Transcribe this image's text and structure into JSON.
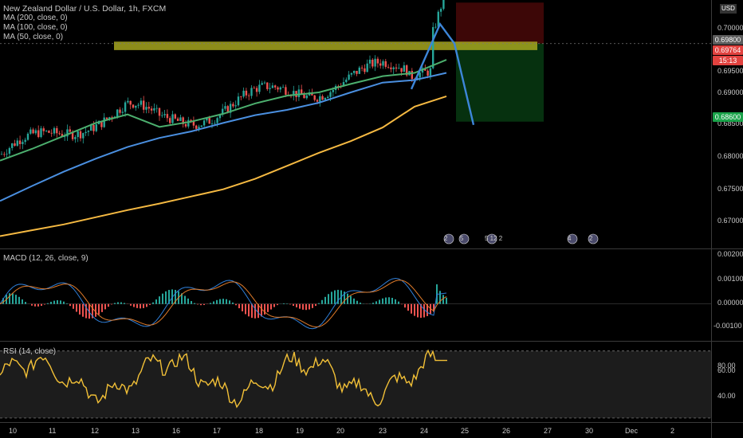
{
  "chart_data": [
    {
      "type": "line",
      "title": "New Zealand Dollar / U.S. Dollar, 1h, FXCM",
      "legend": [
        "MA (200, close, 0)",
        "MA (100, close, 0)",
        "MA (50, close, 0)"
      ],
      "currency": "USD",
      "ylim": [
        0.6665,
        0.7047
      ],
      "yticks": [
        "0.70000",
        "0.69500",
        "0.69000",
        "0.68500",
        "0.68000",
        "0.67500",
        "0.67000"
      ],
      "xticks": [
        "10",
        "11",
        "12",
        "13",
        "16",
        "17",
        "18",
        "19",
        "20",
        "23",
        "24",
        "25",
        "26",
        "27",
        "30",
        "Dec",
        "2"
      ],
      "series": [
        {
          "color": "#f5b942",
          "x": [
            0,
            40,
            80,
            120,
            160,
            200,
            240,
            280,
            320,
            360,
            400,
            440,
            480,
            520,
            560
          ],
          "values": [
            0.6684,
            0.6693,
            0.6702,
            0.6713,
            0.6724,
            0.6734,
            0.6745,
            0.6756,
            0.6772,
            0.6792,
            0.6812,
            0.683,
            0.6851,
            0.6883,
            0.6899
          ]
        },
        {
          "color": "#4a8fe0",
          "x": [
            0,
            40,
            80,
            120,
            160,
            200,
            240,
            280,
            320,
            360,
            400,
            440,
            480,
            520,
            560
          ],
          "values": [
            0.6738,
            0.6761,
            0.6783,
            0.6803,
            0.6821,
            0.6835,
            0.6845,
            0.6858,
            0.687,
            0.6878,
            0.6889,
            0.6905,
            0.692,
            0.6924,
            0.6935
          ]
        },
        {
          "color": "#4caf6e",
          "x": [
            0,
            40,
            80,
            120,
            160,
            200,
            240,
            280,
            320,
            360,
            400,
            440,
            480,
            520,
            560
          ],
          "values": [
            0.68,
            0.6818,
            0.6838,
            0.6858,
            0.6871,
            0.6852,
            0.686,
            0.6872,
            0.6888,
            0.69,
            0.6905,
            0.6918,
            0.693,
            0.6935,
            0.6955
          ]
        }
      ],
      "price_labels": [
        {
          "text": "0.69800",
          "value": 0.698,
          "color": "#5b5b5b"
        },
        {
          "text": "0.69764",
          "value": 0.69764,
          "color": "#e2423f"
        },
        {
          "text": "15:13",
          "value": 0.6952,
          "color": "#e2423f"
        },
        {
          "text": "0.68600",
          "value": 0.686,
          "color": "#1aa34a"
        }
      ],
      "resistance_zone": [
        0.697,
        0.6983
      ],
      "stop_zone": [
        0.698,
        0.7043
      ],
      "target_zone": [
        0.686,
        0.698
      ],
      "pattern": {
        "x": [
          516,
          552,
          570,
          594
        ],
        "values": [
          0.691,
          0.701,
          0.698,
          0.6855
        ]
      }
    },
    {
      "type": "line",
      "title": "MACD (12, 26, close, 9)",
      "ylim": [
        -0.00155,
        0.0023
      ],
      "yticks": [
        "0.00200",
        "0.00100",
        "0.00000",
        "-0.00100"
      ]
    },
    {
      "type": "line",
      "title": "RSI (14, close)",
      "ylim": [
        22,
        82
      ],
      "yticks": [
        "80.00",
        "60.00",
        "40.00"
      ],
      "bands": [
        75,
        25
      ]
    }
  ],
  "event_icons": [
    "2",
    "5",
    "5 12 2",
    "4",
    "2"
  ]
}
